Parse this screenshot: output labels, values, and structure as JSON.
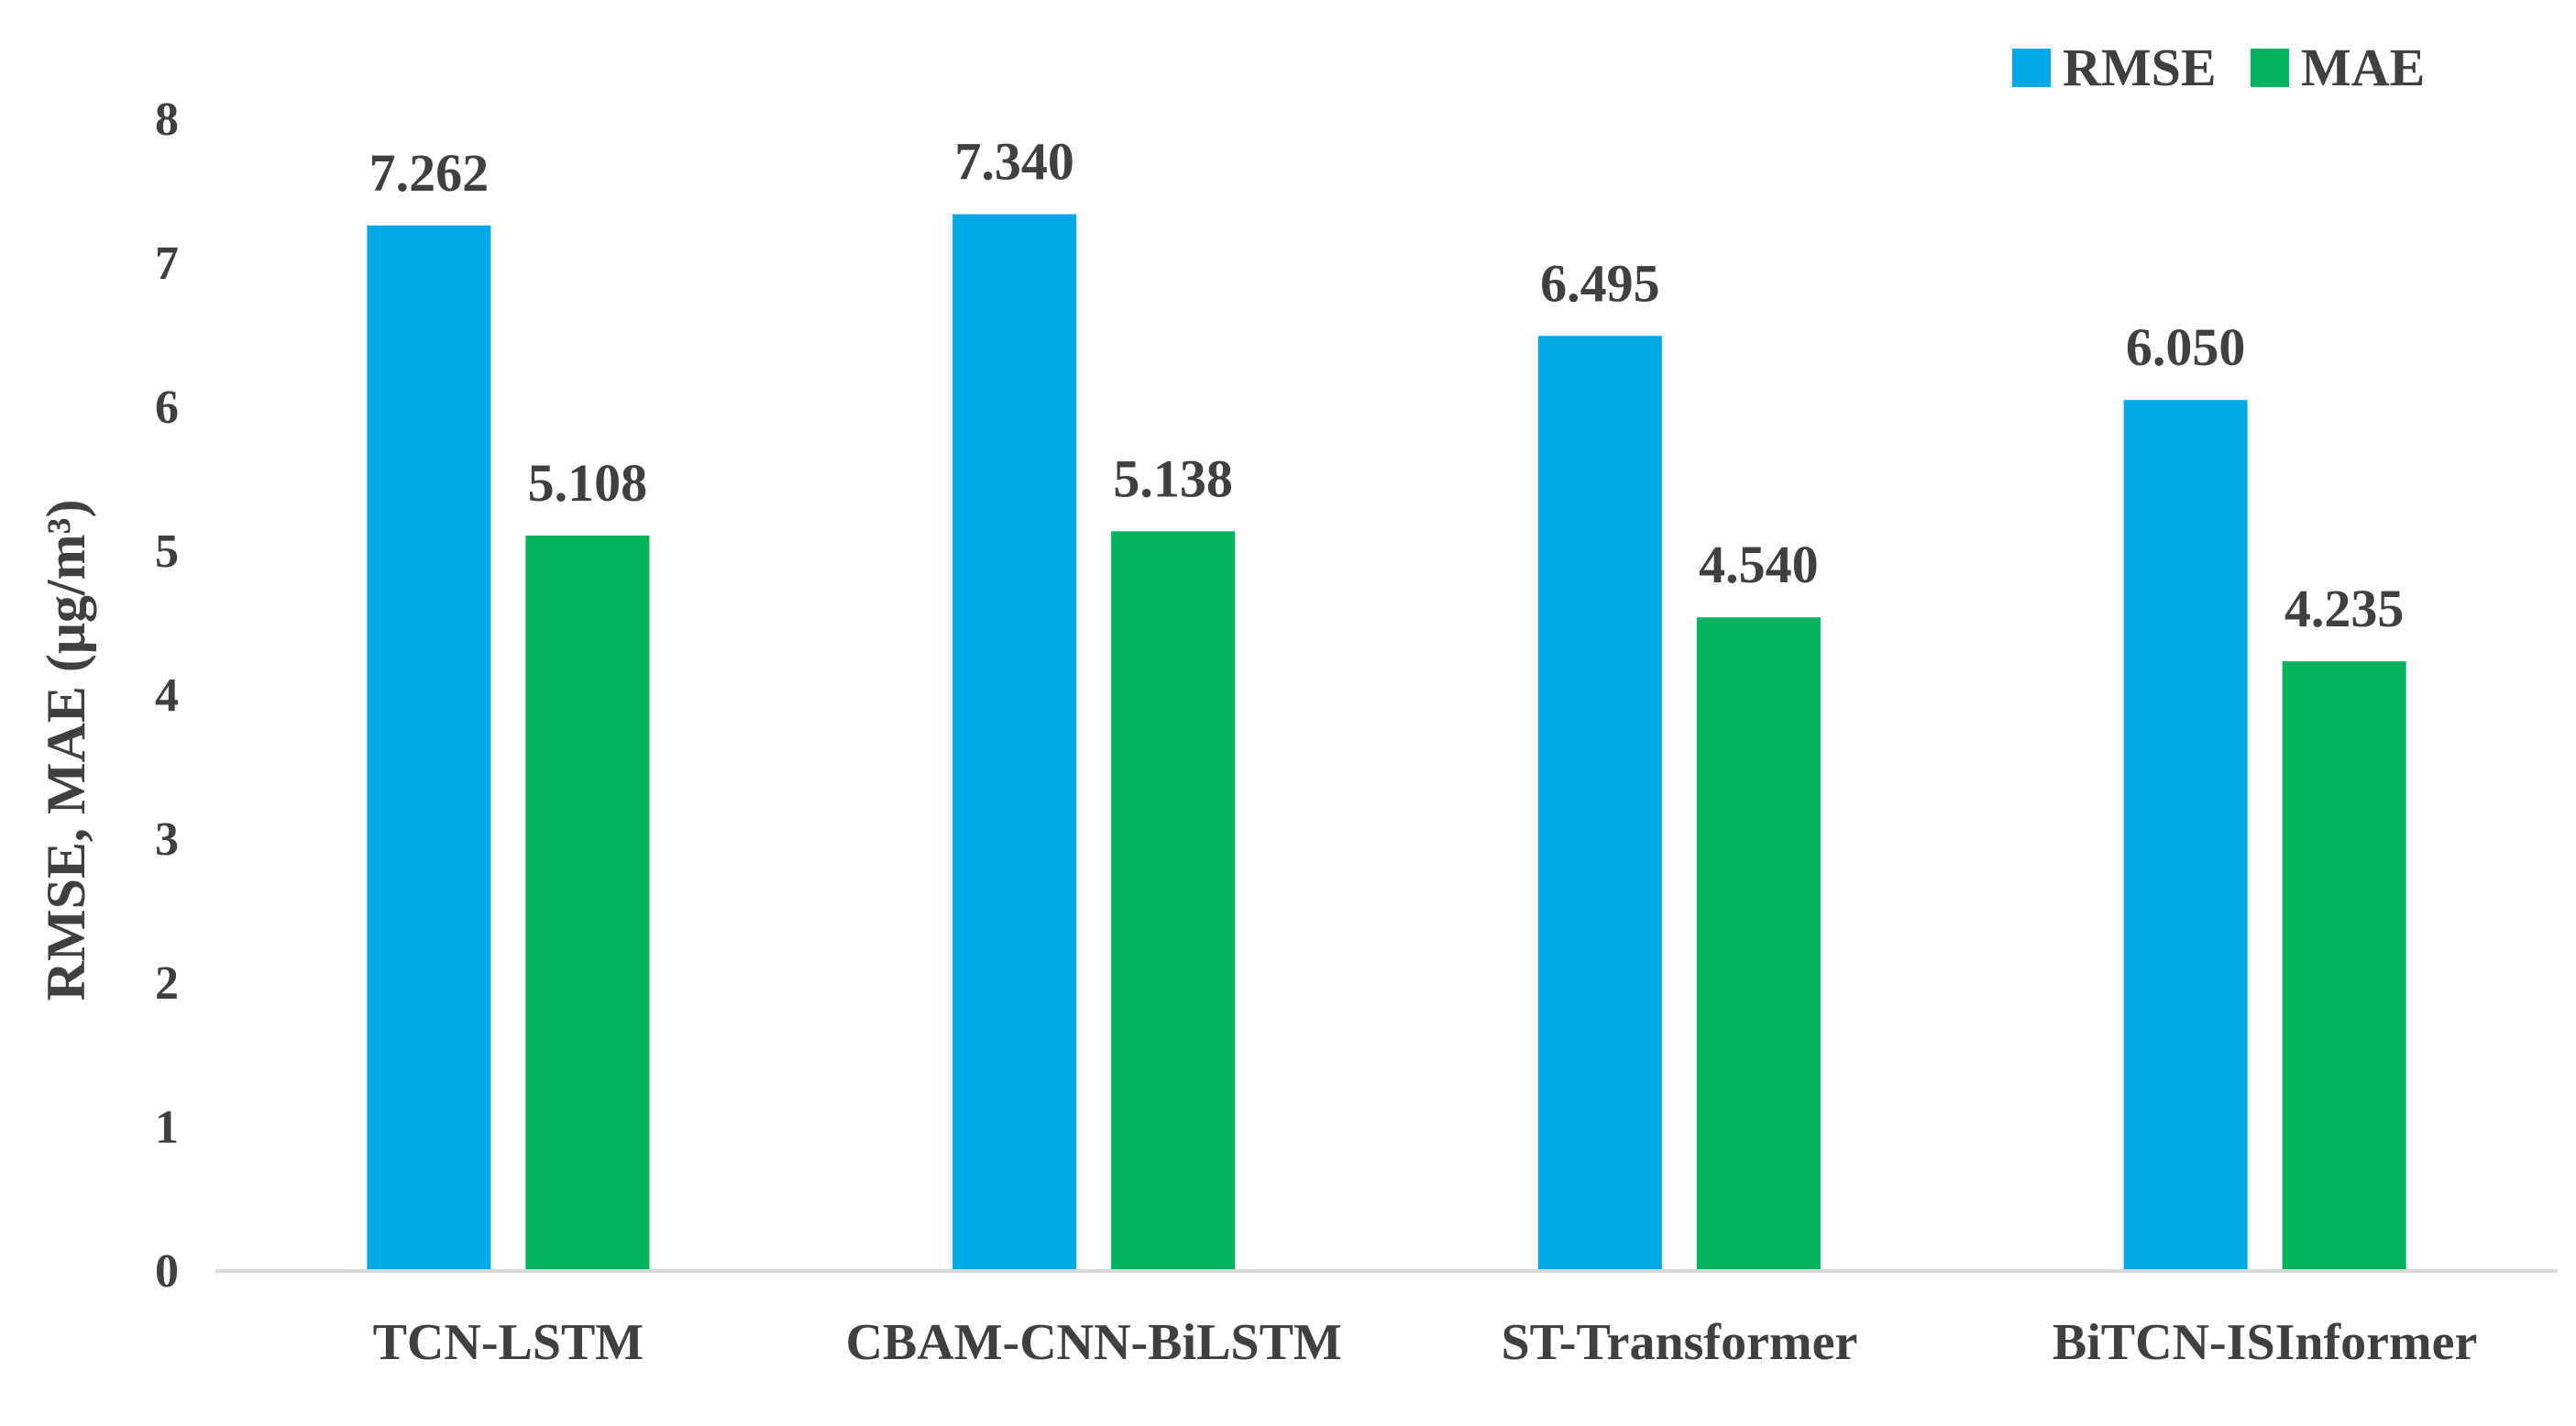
{
  "chart_data": {
    "type": "bar",
    "categories": [
      "TCN-LSTM",
      "CBAM-CNN-BiLSTM",
      "ST-Transformer",
      "BiTCN-ISInformer"
    ],
    "series": [
      {
        "name": "RMSE",
        "values": [
          7.262,
          7.34,
          6.495,
          6.05
        ],
        "labels": [
          "7.262",
          "7.340",
          "6.495",
          "6.050"
        ],
        "color": "#00A9E6"
      },
      {
        "name": "MAE",
        "values": [
          5.108,
          5.138,
          4.54,
          4.235
        ],
        "labels": [
          "5.108",
          "5.138",
          "4.540",
          "4.235"
        ],
        "color": "#00B15E"
      }
    ],
    "title": "",
    "xlabel": "",
    "ylabel": "RMSE, MAE (μg/m³)",
    "ylim": [
      0,
      8
    ],
    "yticks": [
      "0",
      "1",
      "2",
      "3",
      "4",
      "5",
      "6",
      "7",
      "8"
    ],
    "grid": false,
    "legend": "top-right",
    "axis_color": "#D9D9D9",
    "text_color": "#404040"
  }
}
